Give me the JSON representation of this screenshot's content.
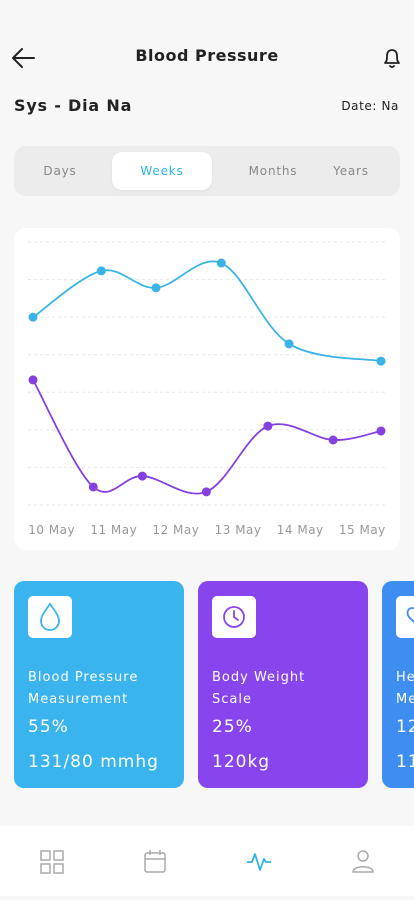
{
  "header": {
    "title": "Blood Pressure"
  },
  "summary": {
    "label": "Sys - Dia Na",
    "date": "Date: Na"
  },
  "tabs": [
    "Days",
    "Weeks",
    "Months",
    "Years"
  ],
  "active_tab": 1,
  "chart_data": {
    "type": "line",
    "xlim": [
      -0.3,
      5.3
    ],
    "xticks": [
      {
        "value": 0,
        "label": "10 May"
      },
      {
        "value": 1,
        "label": "11 May"
      },
      {
        "value": 2,
        "label": "12 May"
      },
      {
        "value": 3,
        "label": "13 May"
      },
      {
        "value": 4,
        "label": "14 May"
      },
      {
        "value": 5,
        "label": "15 May"
      }
    ],
    "ylim": [
      0,
      7
    ],
    "yticks": [
      0,
      1,
      2,
      3,
      4,
      5,
      6,
      7
    ],
    "grid": true,
    "series": [
      {
        "color": "#3ab4e6",
        "x": [
          -0.3,
          0.8,
          1.68,
          2.73,
          3.82,
          5.3
        ],
        "values": [
          5.0,
          6.23,
          5.78,
          6.44,
          4.29,
          3.83
        ]
      },
      {
        "color": "#8440e0",
        "x": [
          -0.3,
          0.67,
          1.46,
          2.49,
          3.48,
          4.53,
          5.3
        ],
        "values": [
          3.33,
          0.48,
          0.77,
          0.35,
          2.1,
          1.73,
          1.97
        ]
      }
    ]
  },
  "cards": [
    {
      "color": "#3ab4ee",
      "title": [
        "Blood Pressure",
        "Measurement"
      ],
      "percent": "55%",
      "reading": "131/80 mmhg"
    },
    {
      "color": "#8845ee",
      "title": [
        "Body Weight",
        "Scale"
      ],
      "percent": "25%",
      "reading": "120kg"
    },
    {
      "color": "#3d8ef0",
      "title": [
        "He",
        "Me"
      ],
      "percent": "12",
      "reading": "11"
    }
  ]
}
